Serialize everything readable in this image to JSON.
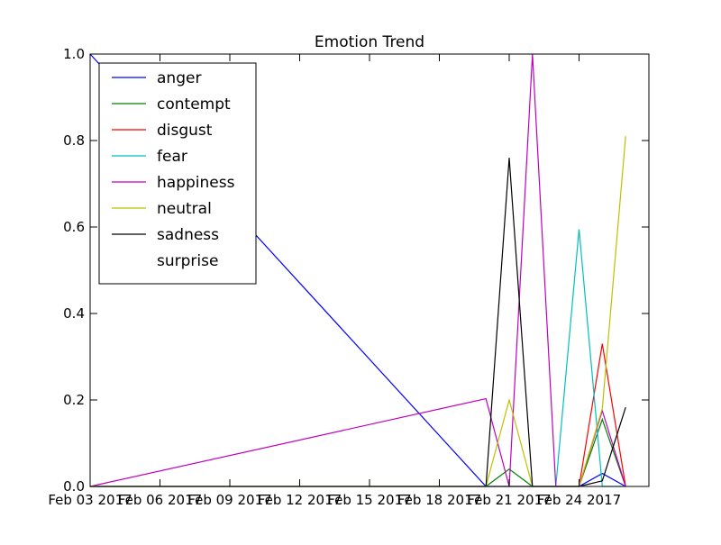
{
  "chart_data": {
    "type": "line",
    "title": "Emotion Trend",
    "xlabel": "",
    "ylabel": "",
    "x_axis": {
      "kind": "date",
      "range": [
        "2017-02-02",
        "2017-02-26"
      ],
      "ticks": [
        {
          "date": "2017-02-02",
          "label": "Feb 03 2017"
        },
        {
          "date": "2017-02-05",
          "label": "Feb 06 2017"
        },
        {
          "date": "2017-02-08",
          "label": "Feb 09 2017"
        },
        {
          "date": "2017-02-11",
          "label": "Feb 12 2017"
        },
        {
          "date": "2017-02-14",
          "label": "Feb 15 2017"
        },
        {
          "date": "2017-02-17",
          "label": "Feb 18 2017"
        },
        {
          "date": "2017-02-20",
          "label": "Feb 21 2017"
        },
        {
          "date": "2017-02-23",
          "label": "Feb 24 2017"
        }
      ]
    },
    "y_axis": {
      "range": [
        0,
        1
      ],
      "ticks": [
        {
          "value": 0.0,
          "label": "0.0"
        },
        {
          "value": 0.2,
          "label": "0.2"
        },
        {
          "value": 0.4,
          "label": "0.4"
        },
        {
          "value": 0.6,
          "label": "0.6"
        },
        {
          "value": 0.8,
          "label": "0.8"
        },
        {
          "value": 1.0,
          "label": "1.0"
        }
      ]
    },
    "grid": false,
    "legend": "upper-left",
    "x": [
      "2017-02-02",
      "2017-02-19",
      "2017-02-20",
      "2017-02-21",
      "2017-02-22",
      "2017-02-23",
      "2017-02-24",
      "2017-02-25"
    ],
    "series": [
      {
        "name": "anger",
        "color": "#0000ff",
        "values": [
          1.0,
          0.0,
          0.0,
          0.0,
          0.0,
          0.0,
          0.03,
          0.0
        ]
      },
      {
        "name": "contempt",
        "color": "#008000",
        "values": [
          0.0,
          0.0,
          0.04,
          0.0,
          0.0,
          0.0,
          0.155,
          0.0
        ]
      },
      {
        "name": "disgust",
        "color": "#ff0000",
        "values": [
          0.0,
          0.0,
          0.0,
          0.0,
          0.0,
          0.0,
          0.33,
          0.0
        ]
      },
      {
        "name": "fear",
        "color": "#00bfbf",
        "values": [
          0.0,
          0.0,
          0.0,
          0.0,
          0.0,
          0.595,
          0.0,
          0.0
        ]
      },
      {
        "name": "happiness",
        "color": "#bf00bf",
        "values": [
          0.0,
          0.203,
          0.0,
          1.0,
          0.0,
          0.0,
          0.175,
          0.0
        ]
      },
      {
        "name": "neutral",
        "color": "#bfbf00",
        "values": [
          0.0,
          0.0,
          0.2,
          0.0,
          0.0,
          0.0,
          0.18,
          0.81
        ]
      },
      {
        "name": "sadness",
        "color": "#000000",
        "values": [
          0.0,
          0.0,
          0.76,
          0.0,
          0.0,
          0.0,
          0.013,
          0.183
        ]
      },
      {
        "name": "surprise",
        "color": "#ffffff",
        "values": [
          0.0,
          0.0,
          0.0,
          0.0,
          0.0,
          0.0,
          0.0,
          0.0
        ]
      }
    ]
  }
}
